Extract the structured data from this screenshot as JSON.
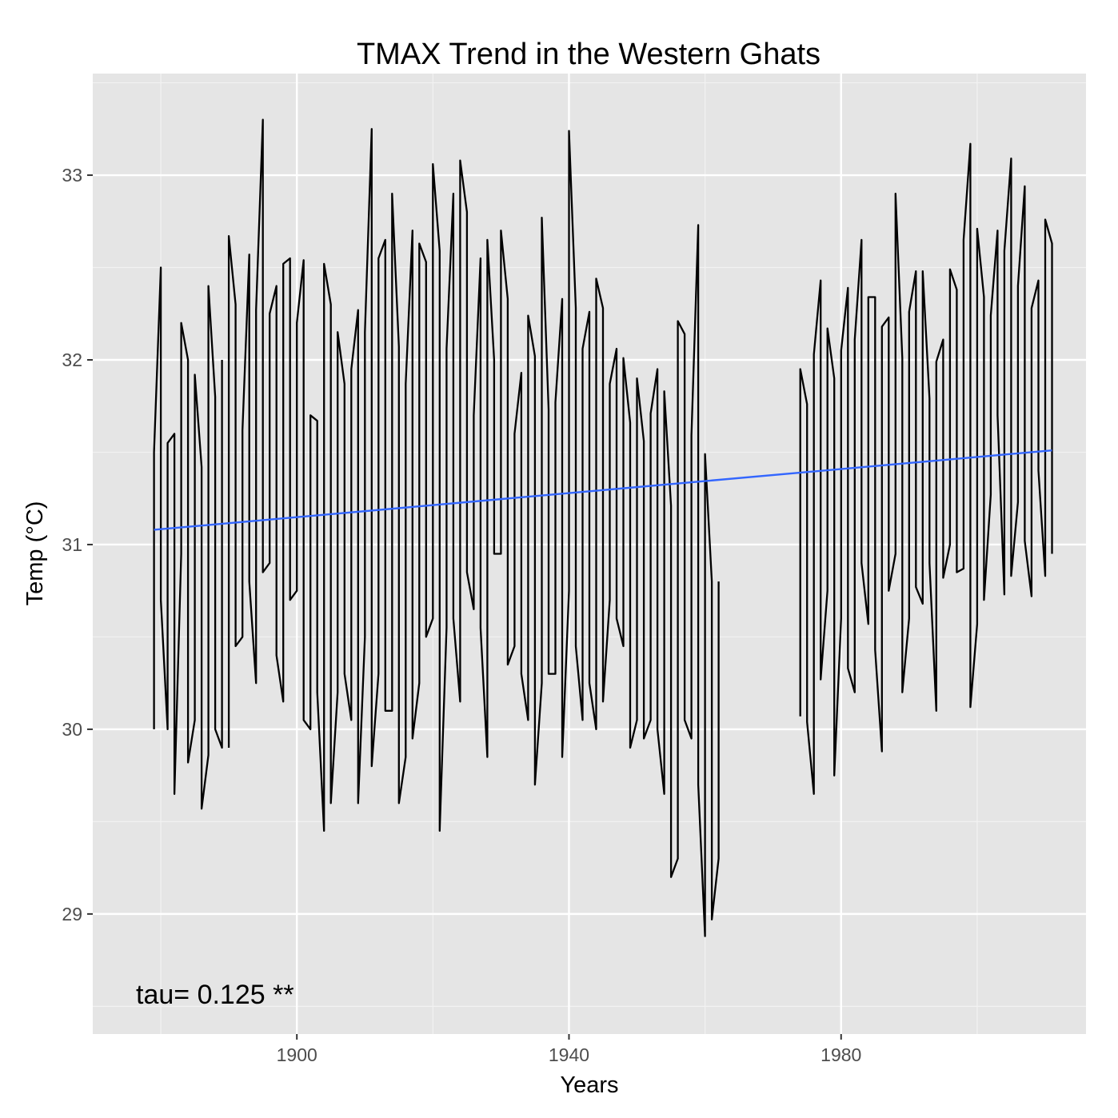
{
  "chart_data": {
    "type": "line",
    "title": "TMAX Trend in the Western Ghats",
    "xlabel": "Years",
    "ylabel": "Temp (°C)",
    "xlim": [
      1870,
      2016
    ],
    "ylim": [
      28.35,
      33.55
    ],
    "x_ticks": [
      1900,
      1940,
      1980
    ],
    "y_ticks": [
      29,
      30,
      31,
      32,
      33
    ],
    "grid": true,
    "legend": "none",
    "annotation": "tau= 0.125 **",
    "colors": {
      "panel": "#e5e5e5",
      "grid_major": "#ffffff",
      "grid_minor": "#f2f2f2",
      "series": "#000000",
      "trend": "#3366ff"
    },
    "series": [
      {
        "role": "monthly-series",
        "segments": [
          {
            "x": [
              1879,
              1880,
              1881,
              1882,
              1883,
              1884,
              1885,
              1886,
              1887,
              1888,
              1889
            ],
            "lows": [
              30.0,
              30.7,
              30.0,
              29.65,
              30.95,
              29.82,
              30.05,
              29.57,
              29.86,
              30.0,
              29.9
            ],
            "highs": [
              31.5,
              32.5,
              31.55,
              31.6,
              32.2,
              32.0,
              31.92,
              31.42,
              32.4,
              31.8,
              32.0
            ]
          },
          {
            "x": [
              1890,
              1891,
              1892,
              1893,
              1894,
              1895,
              1896,
              1897,
              1898,
              1899,
              1900,
              1901,
              1902,
              1903,
              1904,
              1905,
              1906,
              1907,
              1908,
              1909,
              1910,
              1911,
              1912,
              1913,
              1914,
              1915,
              1916,
              1917,
              1918,
              1919,
              1920,
              1921,
              1922,
              1923,
              1924,
              1925,
              1926,
              1927,
              1928,
              1929,
              1930,
              1931,
              1932,
              1933,
              1934,
              1935,
              1936,
              1937,
              1938,
              1939,
              1940,
              1941,
              1942,
              1943,
              1944,
              1945,
              1946,
              1947,
              1948,
              1949,
              1950,
              1951,
              1952,
              1953,
              1954,
              1955,
              1956,
              1957,
              1958,
              1959,
              1960,
              1961,
              1962
            ],
            "lows": [
              29.9,
              30.45,
              30.5,
              30.8,
              30.25,
              30.85,
              30.9,
              30.4,
              30.15,
              30.7,
              30.75,
              30.05,
              30.0,
              30.2,
              29.45,
              29.6,
              30.2,
              30.3,
              30.05,
              29.6,
              30.5,
              29.8,
              30.3,
              30.1,
              30.1,
              29.6,
              29.85,
              29.95,
              30.25,
              30.5,
              30.6,
              29.45,
              30.55,
              30.6,
              30.15,
              30.85,
              30.65,
              30.55,
              29.85,
              30.95,
              30.95,
              30.35,
              30.45,
              30.3,
              30.05,
              29.7,
              30.25,
              30.3,
              30.3,
              29.85,
              30.75,
              30.45,
              30.05,
              30.25,
              30.0,
              30.15,
              30.7,
              30.6,
              30.45,
              29.9,
              30.05,
              29.95,
              30.05,
              30.0,
              29.65,
              29.2,
              29.3,
              30.05,
              29.95,
              29.7,
              28.88,
              28.97,
              29.3
            ],
            "highs": [
              32.67,
              32.3,
              31.62,
              32.57,
              32.27,
              33.3,
              32.25,
              32.4,
              32.52,
              32.55,
              32.2,
              32.54,
              31.7,
              31.67,
              32.52,
              32.3,
              32.15,
              31.87,
              31.95,
              32.27,
              32.15,
              33.25,
              32.55,
              32.65,
              32.9,
              32.07,
              31.87,
              32.7,
              32.63,
              32.53,
              33.06,
              32.59,
              32.06,
              32.9,
              33.08,
              32.8,
              31.7,
              32.55,
              32.65,
              32.0,
              32.7,
              32.33,
              31.6,
              31.93,
              32.24,
              32.02,
              32.77,
              31.73,
              31.77,
              32.33,
              33.24,
              32.28,
              32.06,
              32.26,
              32.44,
              32.28,
              31.87,
              32.06,
              32.01,
              31.66,
              31.9,
              31.56,
              31.71,
              31.95,
              31.83,
              31.21,
              32.21,
              32.14,
              31.59,
              32.73,
              31.49,
              30.8,
              30.8
            ]
          },
          {
            "x": [
              1974,
              1975,
              1976,
              1977,
              1978,
              1979,
              1980,
              1981,
              1982,
              1983,
              1984,
              1985,
              1986,
              1987,
              1988,
              1989,
              1990,
              1991,
              1992,
              1993,
              1994,
              1995,
              1996,
              1997,
              1998,
              1999,
              2000,
              2001,
              2002,
              2003,
              2004,
              2005,
              2006,
              2007,
              2008,
              2009,
              2010,
              2011
            ],
            "lows": [
              30.07,
              30.04,
              29.65,
              30.27,
              30.75,
              29.75,
              30.6,
              30.33,
              30.2,
              30.9,
              30.57,
              30.43,
              29.88,
              30.75,
              30.95,
              30.2,
              30.6,
              30.77,
              30.68,
              30.9,
              30.1,
              30.82,
              31.0,
              30.85,
              30.87,
              30.12,
              30.57,
              30.7,
              31.27,
              31.7,
              30.73,
              30.83,
              31.23,
              31.02,
              30.72,
              31.4,
              30.83,
              30.95
            ],
            "highs": [
              31.95,
              31.76,
              32.03,
              32.43,
              32.17,
              31.9,
              32.05,
              32.39,
              32.11,
              32.65,
              32.34,
              32.34,
              32.18,
              32.23,
              32.9,
              32.01,
              32.26,
              32.48,
              32.48,
              31.79,
              31.99,
              32.11,
              32.49,
              32.38,
              32.65,
              33.17,
              32.71,
              32.34,
              32.24,
              32.7,
              32.59,
              33.09,
              32.4,
              32.94,
              32.28,
              32.43,
              32.76,
              32.63
            ]
          }
        ]
      },
      {
        "role": "trend-line",
        "x": [
          1879,
          2011
        ],
        "y": [
          31.08,
          31.51
        ]
      }
    ]
  }
}
